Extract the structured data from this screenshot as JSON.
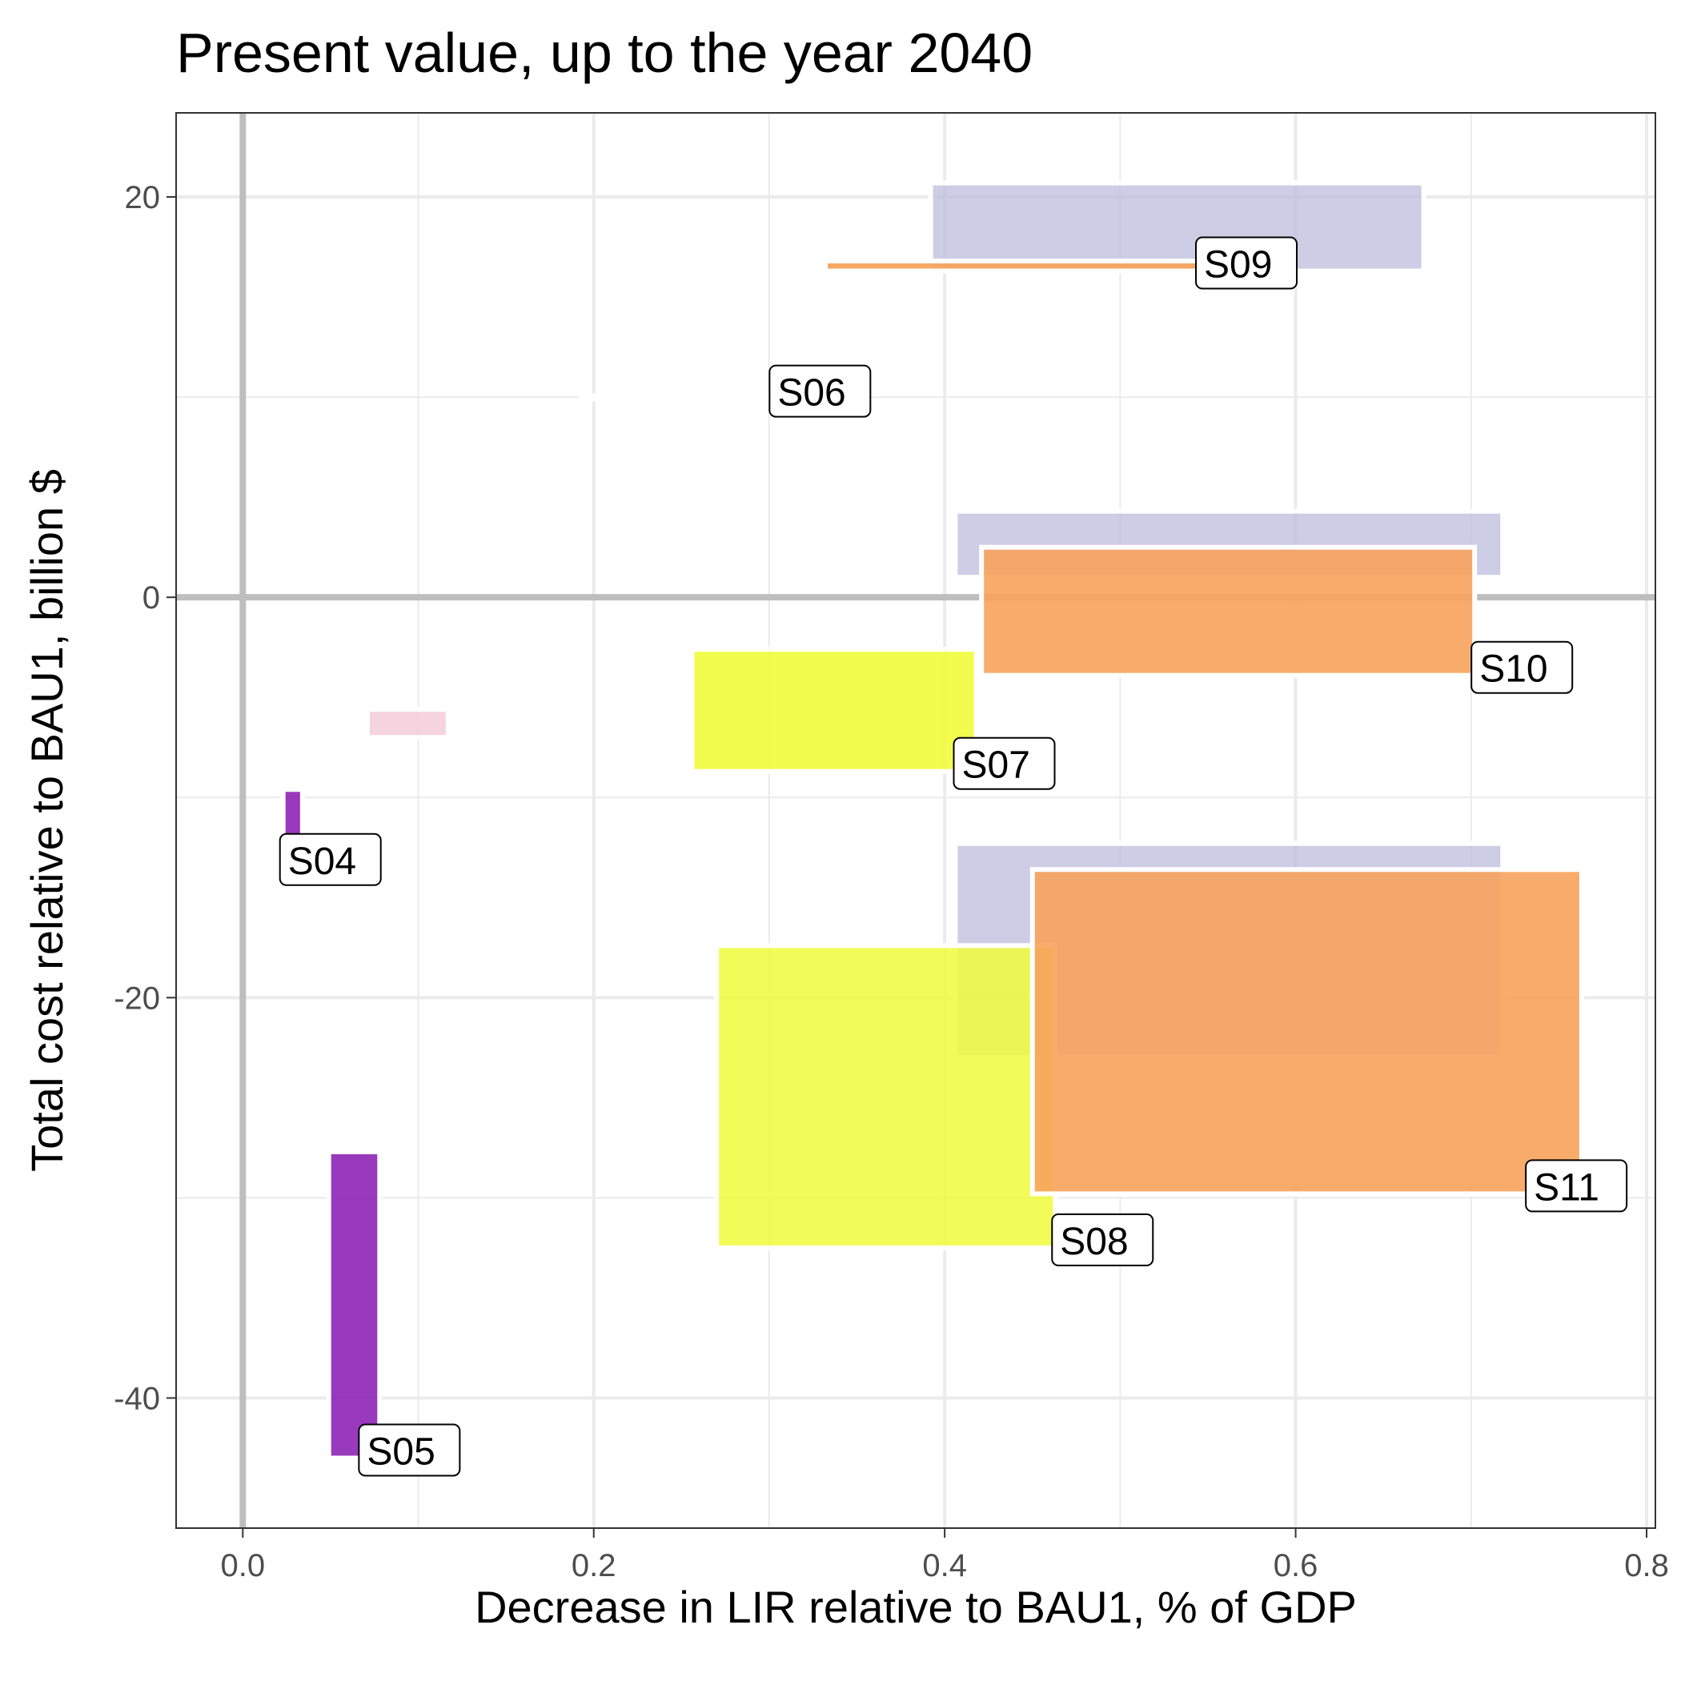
{
  "chart_data": {
    "type": "rect-range",
    "title": "Present value, up to the year 2040",
    "xlabel": "Decrease in LIR relative to BAU1, % of GDP",
    "ylabel": "Total cost relative to BAU1, billion $",
    "xlim": [
      -0.038,
      0.805
    ],
    "ylim": [
      -46.5,
      24.2
    ],
    "x_ticks": [
      0.0,
      0.2,
      0.4,
      0.6,
      0.8
    ],
    "x_tick_labels": [
      "0.0",
      "0.2",
      "0.4",
      "0.6",
      "0.8"
    ],
    "y_ticks": [
      20,
      0,
      -20,
      -40
    ],
    "y_tick_labels": [
      "20",
      "0",
      "-20",
      "-40"
    ],
    "grid": true,
    "series": [
      {
        "name": "S09",
        "color": "#f7a35c",
        "rects": [
          {
            "x0": 0.392,
            "x1": 0.673,
            "y0": 16.3,
            "y1": 20.7,
            "fill": "#bcbddc",
            "opacity": 0.75
          },
          {
            "x0": 0.332,
            "x1": 0.545,
            "y0": 16.3,
            "y1": 16.8,
            "fill": "#f7a35c",
            "opacity": 0.95
          }
        ],
        "label": {
          "text": "S09",
          "x": 0.545,
          "y": 16.3
        }
      },
      {
        "name": "S06",
        "color": "#ffffff",
        "rects": [
          {
            "x0": 0.193,
            "x1": 0.302,
            "y0": 9.9,
            "y1": 10.05,
            "fill": "#ffffff",
            "opacity": 1
          }
        ],
        "label": {
          "text": "S06",
          "x": 0.302,
          "y": 9.9
        }
      },
      {
        "name": "S10",
        "color": "#f7a35c",
        "rects": [
          {
            "x0": 0.406,
            "x1": 0.718,
            "y0": 1.0,
            "y1": 4.3,
            "fill": "#bcbddc",
            "opacity": 0.75
          },
          {
            "x0": 0.421,
            "x1": 0.702,
            "y0": -3.9,
            "y1": 2.5,
            "fill": "#f7a35c",
            "opacity": 0.9
          }
        ],
        "label": {
          "text": "S10",
          "x": 0.702,
          "y": -3.9
        }
      },
      {
        "name": "S07",
        "color": "#f0fc3c",
        "rects": [
          {
            "x0": 0.256,
            "x1": 0.418,
            "y0": -8.7,
            "y1": -2.6,
            "fill": "#f0fc3c",
            "opacity": 0.9
          }
        ],
        "label": {
          "text": "S07",
          "x": 0.407,
          "y": -8.7
        }
      },
      {
        "name": "",
        "color": "#f4cedb",
        "rects": [
          {
            "x0": 0.071,
            "x1": 0.117,
            "y0": -7.0,
            "y1": -5.6,
            "fill": "#f4cedb",
            "opacity": 0.9
          }
        ]
      },
      {
        "name": "S04",
        "color": "#8e24b4",
        "rects": [
          {
            "x0": 0.023,
            "x1": 0.034,
            "y0": -13.5,
            "y1": -9.6,
            "fill": "#8e24b4",
            "opacity": 0.9
          }
        ],
        "label": {
          "text": "S04",
          "x": 0.023,
          "y": -13.5
        }
      },
      {
        "name": "",
        "color": "#bcbddc",
        "rects": [
          {
            "x0": 0.406,
            "x1": 0.718,
            "y0": -23.0,
            "y1": -12.3,
            "fill": "#bcbddc",
            "opacity": 0.75
          }
        ]
      },
      {
        "name": "S08",
        "color": "#f0fc3c",
        "rects": [
          {
            "x0": 0.27,
            "x1": 0.463,
            "y0": -32.5,
            "y1": -17.4,
            "fill": "#f0fc3c",
            "opacity": 0.85
          }
        ],
        "label": {
          "text": "S08",
          "x": 0.463,
          "y": -32.5
        }
      },
      {
        "name": "S11",
        "color": "#f7a35c",
        "rects": [
          {
            "x0": 0.45,
            "x1": 0.763,
            "y0": -29.8,
            "y1": -13.6,
            "fill": "#f7a35c",
            "opacity": 0.9
          }
        ],
        "label": {
          "text": "S11",
          "x": 0.733,
          "y": -29.8
        }
      },
      {
        "name": "S05",
        "color": "#8e24b4",
        "rects": [
          {
            "x0": 0.049,
            "x1": 0.078,
            "y0": -43.0,
            "y1": -27.7,
            "fill": "#8e24b4",
            "opacity": 0.9
          }
        ],
        "label": {
          "text": "S05",
          "x": 0.068,
          "y": -43.0
        }
      }
    ]
  }
}
